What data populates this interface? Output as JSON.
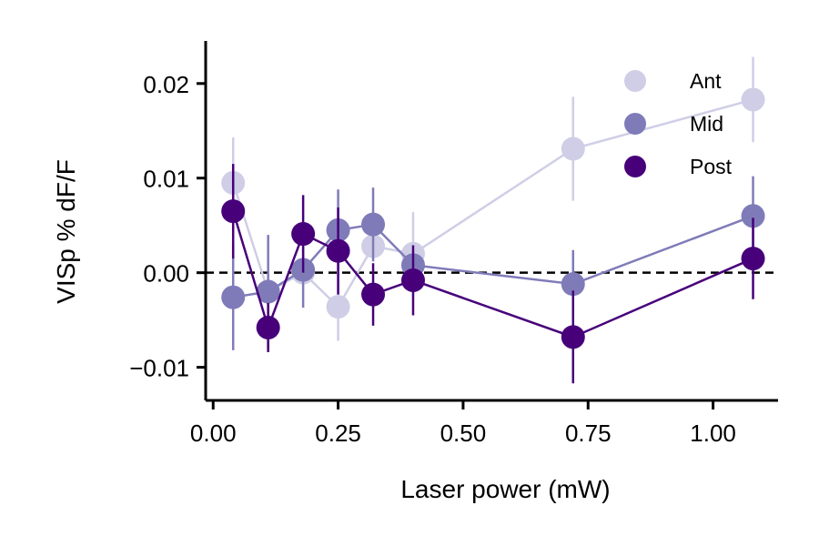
{
  "chart_data": {
    "type": "line",
    "xlabel": "Laser power (mW)",
    "ylabel": "VISp % dF/F",
    "xlim": [
      -0.015,
      1.13
    ],
    "ylim": [
      -0.0135,
      0.0245
    ],
    "xticks": [
      0.0,
      0.25,
      0.5,
      0.75,
      1.0
    ],
    "xtick_labels": [
      "0.00",
      "0.25",
      "0.50",
      "0.75",
      "1.00"
    ],
    "yticks": [
      -0.01,
      0.0,
      0.01,
      0.02
    ],
    "ytick_labels": [
      "−0.01",
      "0.00",
      "0.01",
      "0.02"
    ],
    "reference_line": {
      "y": 0.0,
      "style": "dashed",
      "color": "#000000"
    },
    "legend_position": "top-right",
    "grid": false,
    "series": [
      {
        "name": "Ant",
        "color": "#cfcee6",
        "x": [
          0.04,
          0.11,
          0.18,
          0.25,
          0.32,
          0.4,
          0.72,
          1.08
        ],
        "y": [
          0.0095,
          -0.002,
          0.0,
          -0.0036,
          0.0028,
          0.002,
          0.0131,
          0.0183
        ],
        "err": [
          0.0048,
          0.0,
          0.0,
          0.0036,
          0.0,
          0.0044,
          0.0055,
          0.0045
        ]
      },
      {
        "name": "Mid",
        "color": "#7f7bb9",
        "x": [
          0.04,
          0.11,
          0.18,
          0.25,
          0.32,
          0.4,
          0.72,
          1.08
        ],
        "y": [
          -0.0026,
          -0.002,
          0.0003,
          0.0045,
          0.0051,
          0.0008,
          -0.0012,
          0.006
        ],
        "err": [
          0.0056,
          0.006,
          0.004,
          0.0043,
          0.0039,
          0.0,
          0.0036,
          0.0042
        ]
      },
      {
        "name": "Post",
        "color": "#47007a",
        "x": [
          0.04,
          0.11,
          0.18,
          0.25,
          0.32,
          0.4,
          0.72,
          1.08
        ],
        "y": [
          0.0065,
          -0.0058,
          0.0041,
          0.0023,
          -0.0023,
          -0.0008,
          -0.0068,
          0.0015
        ],
        "err": [
          0.005,
          0.0026,
          0.0041,
          0.0046,
          0.0033,
          0.0037,
          0.0049,
          0.0043
        ]
      }
    ]
  }
}
